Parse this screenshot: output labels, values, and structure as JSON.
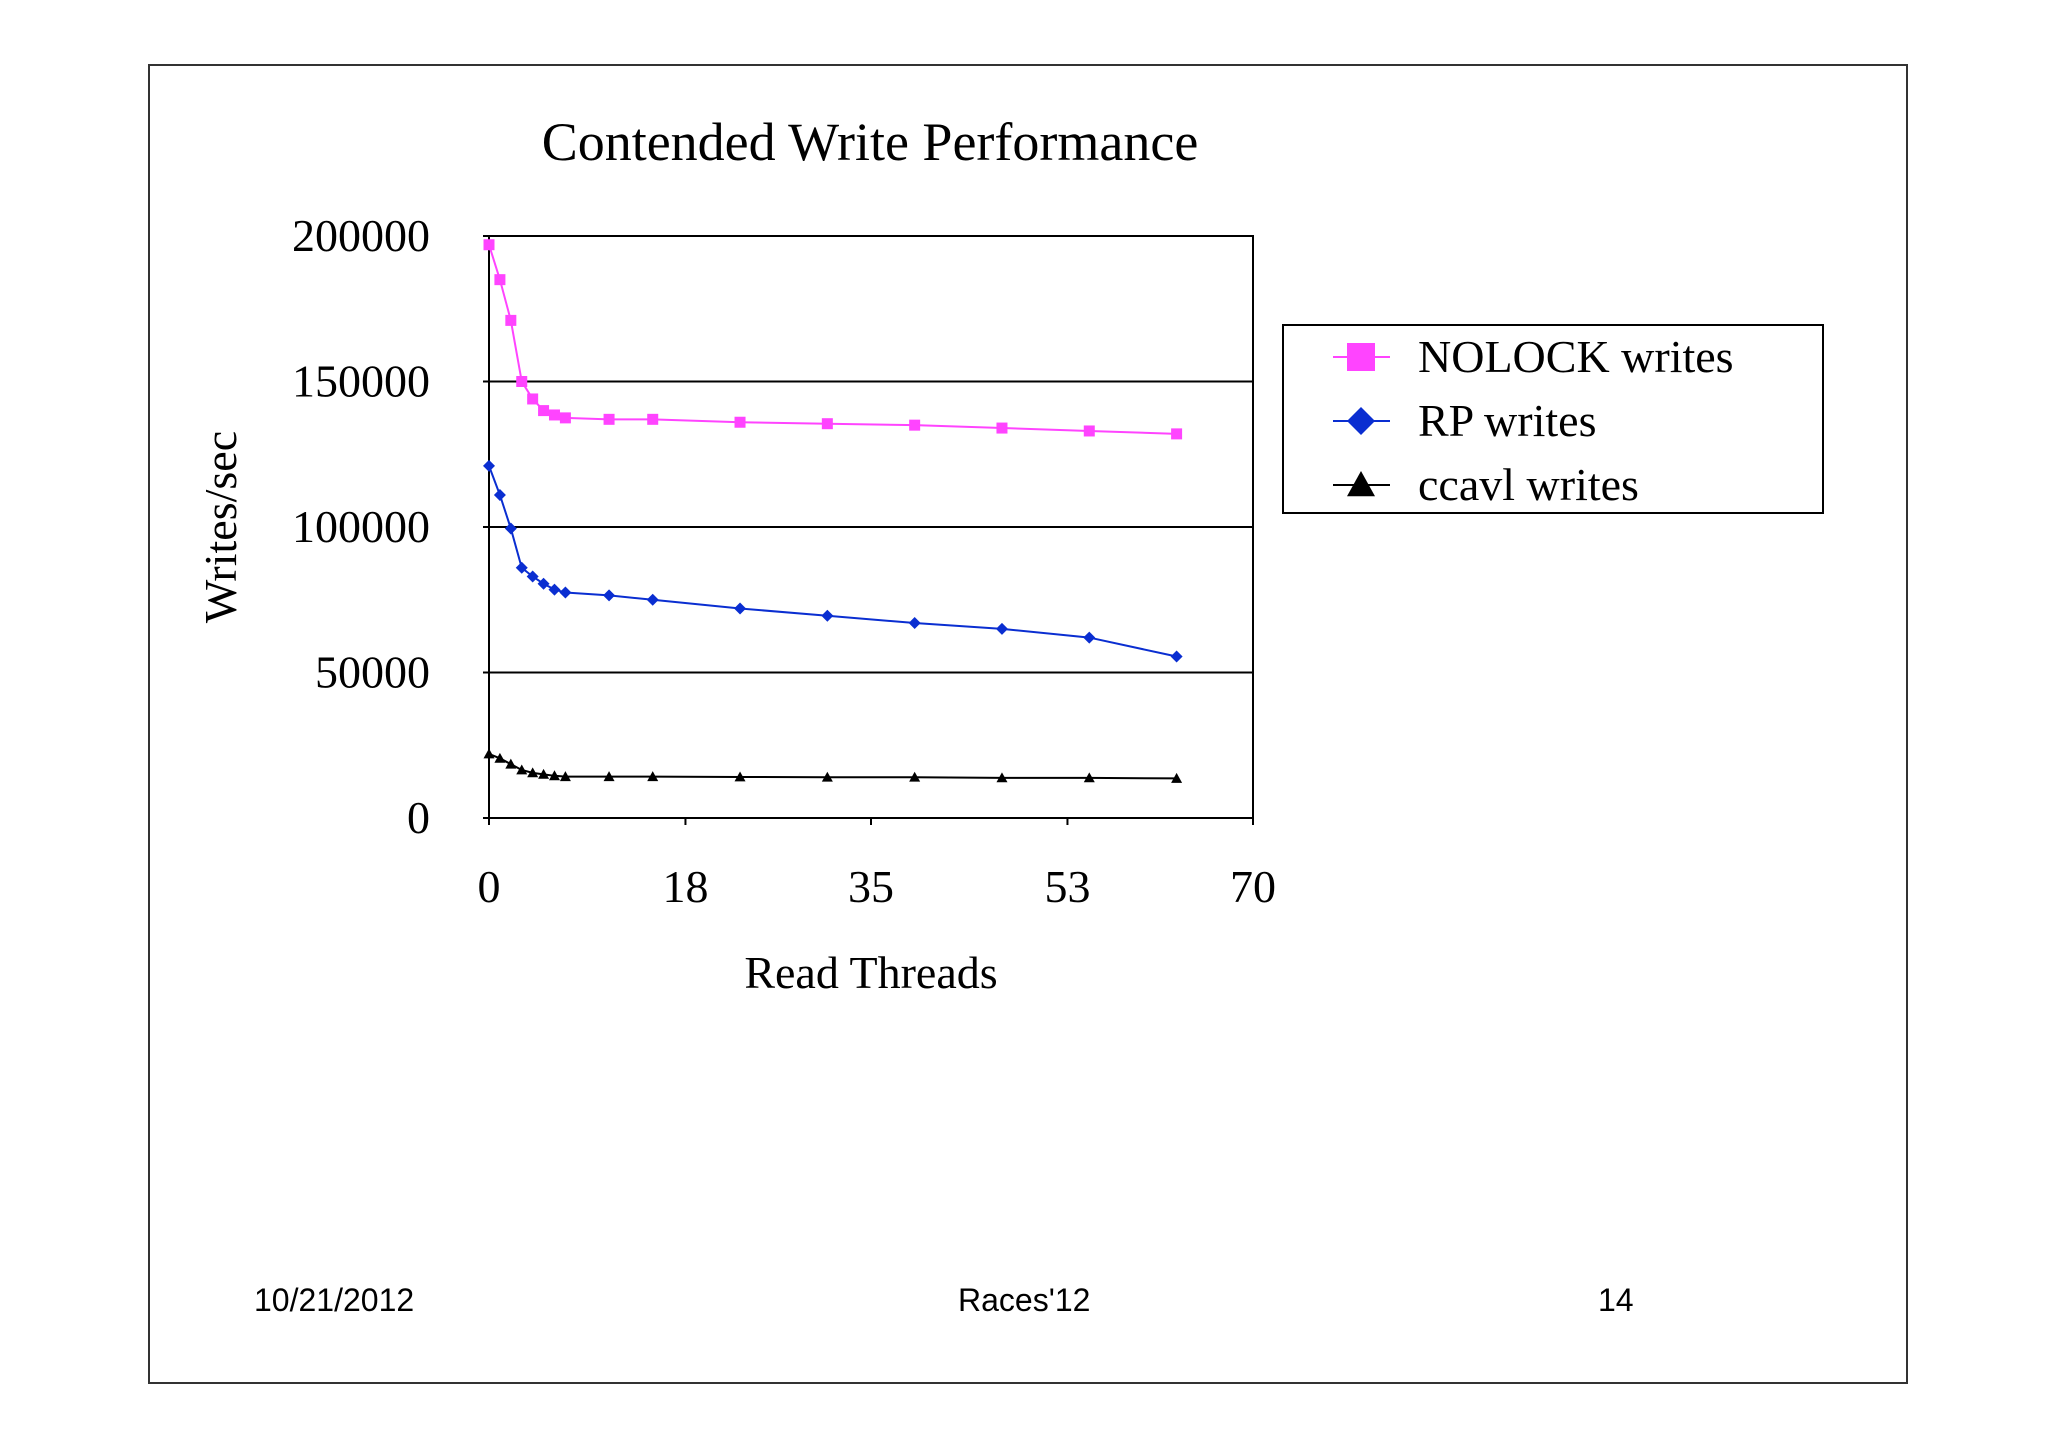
{
  "footer": {
    "date": "10/21/2012",
    "center": "Races'12",
    "page_number": "14"
  },
  "colors": {
    "nolock": "#ff44ff",
    "rp": "#0a2ed1",
    "ccavl": "#000000"
  },
  "chart_data": {
    "type": "line",
    "title": "Contended Write Performance",
    "xlabel": "Read Threads",
    "ylabel": "Writes/sec",
    "xlim": [
      0,
      70
    ],
    "ylim": [
      0,
      200000
    ],
    "xticks": [
      0,
      18,
      35,
      53,
      70
    ],
    "yticks": [
      0,
      50000,
      100000,
      150000,
      200000
    ],
    "grid": "horizontal",
    "legend_position": "right",
    "series": [
      {
        "name": "NOLOCK writes",
        "marker": "square",
        "color": "#ff44ff",
        "x": [
          0,
          1,
          2,
          3,
          4,
          5,
          6,
          7,
          11,
          15,
          23,
          31,
          39,
          47,
          55,
          63
        ],
        "y": [
          197000,
          185000,
          171000,
          150000,
          144000,
          140000,
          138500,
          137500,
          137000,
          137000,
          136000,
          135500,
          135000,
          134000,
          133000,
          132000
        ]
      },
      {
        "name": "RP writes",
        "marker": "diamond",
        "color": "#0a2ed1",
        "x": [
          0,
          1,
          2,
          3,
          4,
          5,
          6,
          7,
          11,
          15,
          23,
          31,
          39,
          47,
          55,
          63
        ],
        "y": [
          121000,
          111000,
          99500,
          86000,
          83000,
          80500,
          78500,
          77500,
          76500,
          75000,
          72000,
          69500,
          67000,
          65000,
          62000,
          55500
        ]
      },
      {
        "name": "ccavl writes",
        "marker": "triangle",
        "color": "#000000",
        "x": [
          0,
          1,
          2,
          3,
          4,
          5,
          6,
          7,
          11,
          15,
          23,
          31,
          39,
          47,
          55,
          63
        ],
        "y": [
          22000,
          20500,
          18500,
          16500,
          15500,
          15000,
          14500,
          14200,
          14200,
          14200,
          14100,
          14000,
          14000,
          13800,
          13800,
          13600
        ]
      }
    ]
  }
}
